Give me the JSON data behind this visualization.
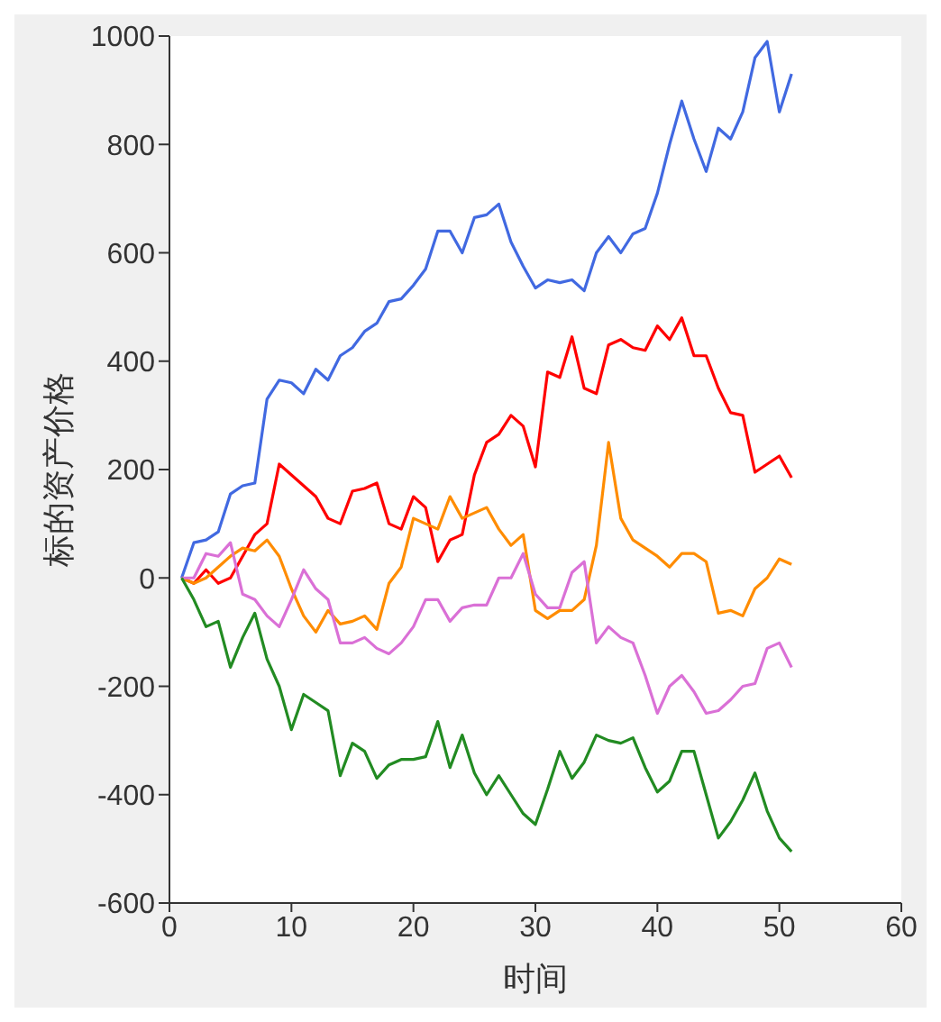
{
  "chart_data": {
    "type": "line",
    "xlabel": "时间",
    "ylabel": "标的资产价格",
    "x": [
      1,
      2,
      3,
      4,
      5,
      6,
      7,
      8,
      9,
      10,
      11,
      12,
      13,
      14,
      15,
      16,
      17,
      18,
      19,
      20,
      21,
      22,
      23,
      24,
      25,
      26,
      27,
      28,
      29,
      30,
      31,
      32,
      33,
      34,
      35,
      36,
      37,
      38,
      39,
      40,
      41,
      42,
      43,
      44,
      45,
      46,
      47,
      48,
      49,
      50,
      51
    ],
    "series": [
      {
        "color": "#4169e1",
        "values": [
          0,
          65,
          70,
          85,
          155,
          170,
          175,
          330,
          365,
          360,
          340,
          385,
          365,
          410,
          425,
          455,
          470,
          510,
          515,
          540,
          570,
          640,
          640,
          600,
          665,
          670,
          690,
          620,
          575,
          535,
          550,
          545,
          550,
          530,
          600,
          630,
          600,
          635,
          645,
          710,
          800,
          880,
          810,
          750,
          830,
          810,
          860,
          960,
          990,
          860,
          930
        ]
      },
      {
        "color": "#ff0000",
        "values": [
          0,
          -10,
          15,
          -10,
          0,
          40,
          80,
          100,
          210,
          190,
          170,
          150,
          110,
          100,
          160,
          165,
          175,
          100,
          90,
          150,
          130,
          30,
          70,
          80,
          190,
          250,
          265,
          300,
          280,
          205,
          380,
          370,
          445,
          350,
          340,
          430,
          440,
          425,
          420,
          465,
          440,
          480,
          410,
          410,
          350,
          305,
          300,
          195,
          210,
          225,
          185
        ]
      },
      {
        "color": "#ff8c00",
        "values": [
          0,
          -10,
          0,
          20,
          40,
          55,
          50,
          70,
          40,
          -20,
          -70,
          -100,
          -60,
          -85,
          -80,
          -70,
          -95,
          -10,
          20,
          110,
          100,
          90,
          150,
          110,
          120,
          130,
          90,
          60,
          80,
          -60,
          -75,
          -60,
          -60,
          -40,
          60,
          250,
          110,
          70,
          55,
          40,
          20,
          45,
          45,
          30,
          -65,
          -60,
          -70,
          -20,
          0,
          35,
          25
        ]
      },
      {
        "color": "#da70d6",
        "values": [
          0,
          0,
          45,
          40,
          65,
          -30,
          -40,
          -70,
          -90,
          -40,
          15,
          -20,
          -40,
          -120,
          -120,
          -110,
          -130,
          -140,
          -120,
          -90,
          -40,
          -40,
          -80,
          -55,
          -50,
          -50,
          0,
          0,
          45,
          -30,
          -55,
          -55,
          10,
          30,
          -120,
          -90,
          -110,
          -120,
          -180,
          -250,
          -200,
          -180,
          -210,
          -250,
          -245,
          -225,
          -200,
          -195,
          -130,
          -120,
          -165
        ]
      },
      {
        "color": "#228b22",
        "values": [
          0,
          -40,
          -90,
          -80,
          -165,
          -110,
          -65,
          -150,
          -200,
          -280,
          -215,
          -230,
          -245,
          -365,
          -305,
          -320,
          -370,
          -345,
          -335,
          -335,
          -330,
          -265,
          -350,
          -290,
          -360,
          -400,
          -365,
          -400,
          -435,
          -455,
          -390,
          -320,
          -370,
          -340,
          -290,
          -300,
          -305,
          -295,
          -350,
          -395,
          -375,
          -320,
          -320,
          -400,
          -480,
          -450,
          -410,
          -360,
          -430,
          -480,
          -505
        ]
      }
    ],
    "xlim": [
      0,
      60
    ],
    "xticks": [
      0,
      10,
      20,
      30,
      40,
      50,
      60
    ],
    "ylim": [
      -600,
      1000
    ],
    "yticks": [
      -600,
      -400,
      -200,
      0,
      200,
      400,
      600,
      800,
      1000
    ],
    "grid": false,
    "marker": "none",
    "line_style": "solid"
  }
}
